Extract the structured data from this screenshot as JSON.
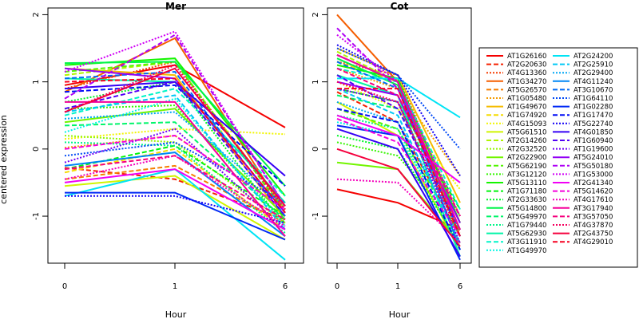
{
  "chart_data": [
    {
      "type": "line",
      "title": "Mer",
      "xlabel": "Hour",
      "ylabel": "centered expression",
      "x": [
        "0",
        "1",
        "6"
      ],
      "ylim": [
        -1.7,
        2.1
      ],
      "yticks": [
        "-1",
        "0",
        "1",
        "2"
      ],
      "series": [
        {
          "name": "AT1G26160",
          "values": [
            0.95,
            1.25,
            0.32
          ]
        },
        {
          "name": "AT2G20630",
          "values": [
            -0.28,
            -0.45,
            -1.05
          ]
        },
        {
          "name": "AT4G13360",
          "values": [
            0.9,
            1.3,
            -0.9
          ]
        },
        {
          "name": "AT1G34270",
          "values": [
            0.85,
            1.65,
            -0.95
          ]
        },
        {
          "name": "AT5G26570",
          "values": [
            -0.45,
            -0.25,
            -1.1
          ]
        },
        {
          "name": "AT1G05480",
          "values": [
            0.02,
            0.2,
            -0.9
          ]
        },
        {
          "name": "AT1G49670",
          "values": [
            1.2,
            1.1,
            -1.05
          ]
        },
        {
          "name": "AT1G74920",
          "values": [
            -0.35,
            0.0,
            -1.2
          ]
        },
        {
          "name": "AT4G15093",
          "values": [
            0.15,
            0.3,
            0.22
          ]
        },
        {
          "name": "AT5G61510",
          "values": [
            -0.55,
            -0.4,
            -1.35
          ]
        },
        {
          "name": "AT2G14260",
          "values": [
            1.1,
            1.3,
            -0.9
          ]
        },
        {
          "name": "AT2G32520",
          "values": [
            0.2,
            0.1,
            -1.1
          ]
        },
        {
          "name": "AT2G22900",
          "values": [
            0.4,
            0.6,
            -1.0
          ]
        },
        {
          "name": "AT5G62190",
          "values": [
            1.15,
            1.3,
            -0.95
          ]
        },
        {
          "name": "AT3G12120",
          "values": [
            0.6,
            0.65,
            -1.1
          ]
        },
        {
          "name": "AT5G13110",
          "values": [
            1.25,
            1.35,
            -0.7
          ]
        },
        {
          "name": "AT1G71180",
          "values": [
            -0.3,
            0.05,
            -1.0
          ]
        },
        {
          "name": "AT2G33630",
          "values": [
            0.7,
            1.0,
            -1.15
          ]
        },
        {
          "name": "AT5G14800",
          "values": [
            1.28,
            1.3,
            -0.55
          ]
        },
        {
          "name": "AT5G49970",
          "values": [
            0.35,
            0.4,
            -1.05
          ]
        },
        {
          "name": "AT1G79440",
          "values": [
            0.1,
            0.05,
            -1.25
          ]
        },
        {
          "name": "AT5G62930",
          "values": [
            1.05,
            1.0,
            -0.8
          ]
        },
        {
          "name": "AT3G11910",
          "values": [
            0.5,
            0.9,
            -0.7
          ]
        },
        {
          "name": "AT1G49970",
          "values": [
            0.25,
            0.75,
            -1.15
          ]
        },
        {
          "name": "AT2G24200",
          "values": [
            -0.7,
            -0.3,
            -1.65
          ]
        },
        {
          "name": "AT2G25910",
          "values": [
            0.55,
            0.8,
            -1.2
          ]
        },
        {
          "name": "AT2G29400",
          "values": [
            0.45,
            0.55,
            -0.85
          ]
        },
        {
          "name": "AT4G11240",
          "values": [
            -0.25,
            -0.05,
            -1.3
          ]
        },
        {
          "name": "AT3G10670",
          "values": [
            1.05,
            1.15,
            -1.0
          ]
        },
        {
          "name": "AT1G64110",
          "values": [
            -0.1,
            0.1,
            -0.8
          ]
        },
        {
          "name": "AT1G02280",
          "values": [
            -0.65,
            -0.65,
            -1.35
          ]
        },
        {
          "name": "AT1G17470",
          "values": [
            0.85,
            0.95,
            -0.55
          ]
        },
        {
          "name": "AT5G22740",
          "values": [
            -0.7,
            -0.7,
            -1.1
          ]
        },
        {
          "name": "AT4G01850",
          "values": [
            0.9,
            1.0,
            -0.4
          ]
        },
        {
          "name": "AT1G60940",
          "values": [
            0.6,
            1.0,
            -1.0
          ]
        },
        {
          "name": "AT1G19600",
          "values": [
            -0.2,
            0.3,
            -1.2
          ]
        },
        {
          "name": "AT5G24010",
          "values": [
            1.2,
            1.05,
            -0.95
          ]
        },
        {
          "name": "AT5G50180",
          "values": [
            0.75,
            1.7,
            -0.85
          ]
        },
        {
          "name": "AT1G53000",
          "values": [
            1.15,
            1.75,
            -0.85
          ]
        },
        {
          "name": "AT2G41340",
          "values": [
            -0.5,
            -0.3,
            -1.2
          ]
        },
        {
          "name": "AT5G14620",
          "values": [
            0.0,
            0.2,
            -0.9
          ]
        },
        {
          "name": "AT4G17610",
          "values": [
            -0.45,
            -0.1,
            -1.15
          ]
        },
        {
          "name": "AT3G17940",
          "values": [
            0.7,
            0.7,
            -1.3
          ]
        },
        {
          "name": "AT3G57050",
          "values": [
            -0.3,
            -0.1,
            -1.05
          ]
        },
        {
          "name": "AT4G37870",
          "values": [
            0.55,
            1.25,
            -0.9
          ]
        },
        {
          "name": "AT2G43750",
          "values": [
            0.55,
            1.2,
            -0.85
          ]
        },
        {
          "name": "AT4G29010",
          "values": [
            1.0,
            1.05,
            -0.95
          ]
        }
      ]
    },
    {
      "type": "line",
      "title": "Cot",
      "xlabel": "Hour",
      "x": [
        "0",
        "1",
        "6"
      ],
      "ylim": [
        -1.7,
        2.1
      ],
      "yticks": [
        "-1",
        "0",
        "1",
        "2"
      ],
      "series": [
        {
          "name": "AT1G26160",
          "values": [
            -0.6,
            -0.8,
            -1.2
          ]
        },
        {
          "name": "AT2G20630",
          "values": [
            0.85,
            0.4,
            -1.3
          ]
        },
        {
          "name": "AT4G13360",
          "values": [
            1.3,
            1.1,
            -1.1
          ]
        },
        {
          "name": "AT1G34270",
          "values": [
            2.0,
            1.0,
            -1.3
          ]
        },
        {
          "name": "AT5G26570",
          "values": [
            1.4,
            1.0,
            -1.25
          ]
        },
        {
          "name": "AT1G05480",
          "values": [
            1.2,
            0.9,
            -0.4
          ]
        },
        {
          "name": "AT1G49670",
          "values": [
            1.5,
            1.1,
            -0.8
          ]
        },
        {
          "name": "AT1G74920",
          "values": [
            1.3,
            1.0,
            -1.0
          ]
        },
        {
          "name": "AT4G15093",
          "values": [
            1.0,
            0.6,
            -0.6
          ]
        },
        {
          "name": "AT5G61510",
          "values": [
            0.7,
            0.2,
            -1.5
          ]
        },
        {
          "name": "AT2G14260",
          "values": [
            1.45,
            1.0,
            -1.1
          ]
        },
        {
          "name": "AT2G32520",
          "values": [
            1.1,
            0.8,
            -1.2
          ]
        },
        {
          "name": "AT2G22900",
          "values": [
            -0.2,
            -0.3,
            -1.4
          ]
        },
        {
          "name": "AT5G62190",
          "values": [
            0.6,
            0.3,
            -1.3
          ]
        },
        {
          "name": "AT3G12120",
          "values": [
            0.1,
            -0.1,
            -1.2
          ]
        },
        {
          "name": "AT5G13110",
          "values": [
            1.25,
            1.05,
            -1.1
          ]
        },
        {
          "name": "AT1G71180",
          "values": [
            0.9,
            0.7,
            -0.9
          ]
        },
        {
          "name": "AT2G33630",
          "values": [
            0.2,
            0.0,
            -1.4
          ]
        },
        {
          "name": "AT5G14800",
          "values": [
            1.35,
            0.95,
            -1.2
          ]
        },
        {
          "name": "AT5G49970",
          "values": [
            0.8,
            0.6,
            -1.0
          ]
        },
        {
          "name": "AT1G79440",
          "values": [
            0.5,
            0.3,
            -1.5
          ]
        },
        {
          "name": "AT5G62930",
          "values": [
            1.1,
            0.8,
            -1.6
          ]
        },
        {
          "name": "AT3G11910",
          "values": [
            1.2,
            1.0,
            -0.9
          ]
        },
        {
          "name": "AT1G49970",
          "values": [
            0.4,
            0.2,
            -1.3
          ]
        },
        {
          "name": "AT2G24200",
          "values": [
            1.05,
            1.05,
            0.47
          ]
        },
        {
          "name": "AT2G25910",
          "values": [
            0.9,
            0.5,
            -1.4
          ]
        },
        {
          "name": "AT2G29400",
          "values": [
            0.7,
            0.4,
            -1.2
          ]
        },
        {
          "name": "AT4G11240",
          "values": [
            1.4,
            1.0,
            -1.5
          ]
        },
        {
          "name": "AT3G10670",
          "values": [
            1.3,
            0.9,
            -1.3
          ]
        },
        {
          "name": "AT1G64110",
          "values": [
            1.5,
            1.1,
            0.0
          ]
        },
        {
          "name": "AT1G02280",
          "values": [
            0.35,
            0.2,
            -1.65
          ]
        },
        {
          "name": "AT1G17470",
          "values": [
            0.6,
            0.4,
            -1.5
          ]
        },
        {
          "name": "AT5G22740",
          "values": [
            1.55,
            1.1,
            -0.4
          ]
        },
        {
          "name": "AT4G01850",
          "values": [
            0.3,
            0.0,
            -1.6
          ]
        },
        {
          "name": "AT1G60940",
          "values": [
            1.1,
            0.6,
            -1.2
          ]
        },
        {
          "name": "AT1G19600",
          "values": [
            0.9,
            0.7,
            -1.4
          ]
        },
        {
          "name": "AT5G24010",
          "values": [
            1.0,
            0.8,
            -1.1
          ]
        },
        {
          "name": "AT5G50180",
          "values": [
            1.8,
            0.9,
            -1.2
          ]
        },
        {
          "name": "AT1G53000",
          "values": [
            1.7,
            1.0,
            -1.0
          ]
        },
        {
          "name": "AT2G41340",
          "values": [
            0.5,
            0.2,
            -0.5
          ]
        },
        {
          "name": "AT5G14620",
          "values": [
            0.45,
            0.1,
            -1.3
          ]
        },
        {
          "name": "AT4G17610",
          "values": [
            -0.45,
            -0.5,
            -1.4
          ]
        },
        {
          "name": "AT3G17940",
          "values": [
            1.4,
            1.0,
            -1.2
          ]
        },
        {
          "name": "AT3G57050",
          "values": [
            1.2,
            0.8,
            -1.0
          ]
        },
        {
          "name": "AT4G37870",
          "values": [
            1.0,
            0.7,
            -1.3
          ]
        },
        {
          "name": "AT2G43750",
          "values": [
            0.0,
            -0.3,
            -1.45
          ]
        },
        {
          "name": "AT4G29010",
          "values": [
            0.9,
            0.9,
            -1.3
          ]
        }
      ]
    }
  ]
}
